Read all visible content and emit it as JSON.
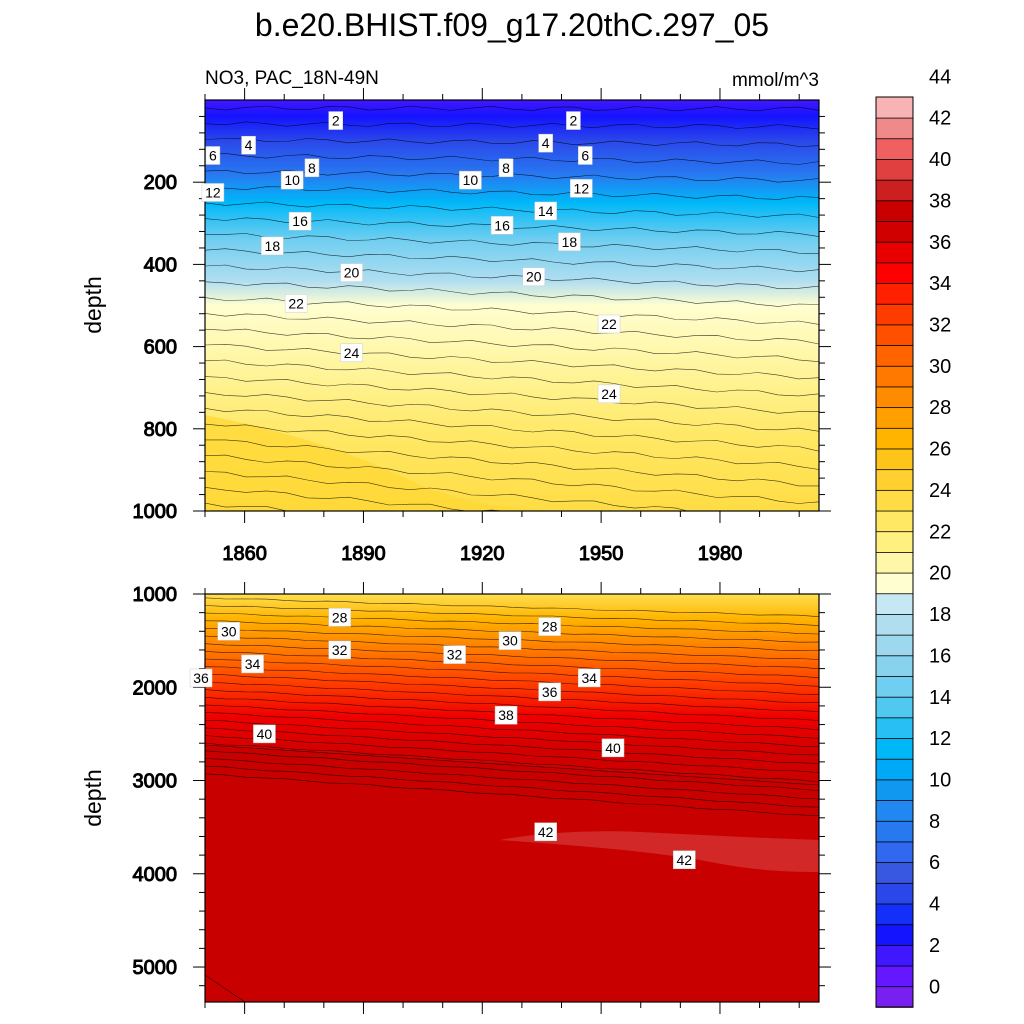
{
  "title": "b.e20.BHIST.f09_g17.20thC.297_05",
  "chart_data": [
    {
      "type": "contour",
      "panel": "upper",
      "left_label": "NO3, PAC_18N-49N",
      "right_label": "mmol/m^3",
      "xlabel": "",
      "ylabel": "depth",
      "xlim": [
        1850,
        2005
      ],
      "ylim": [
        1000,
        0
      ],
      "x_ticks": [
        1860,
        1890,
        1920,
        1950,
        1980
      ],
      "y_ticks": [
        200,
        400,
        600,
        800,
        1000
      ],
      "contour_labels": [
        {
          "value": "2",
          "x": 1883,
          "y": 50
        },
        {
          "value": "2",
          "x": 1943,
          "y": 50
        },
        {
          "value": "4",
          "x": 1861,
          "y": 110
        },
        {
          "value": "4",
          "x": 1936,
          "y": 105
        },
        {
          "value": "6",
          "x": 1852,
          "y": 135
        },
        {
          "value": "6",
          "x": 1946,
          "y": 135
        },
        {
          "value": "8",
          "x": 1877,
          "y": 165
        },
        {
          "value": "8",
          "x": 1926,
          "y": 165
        },
        {
          "value": "10",
          "x": 1872,
          "y": 195
        },
        {
          "value": "10",
          "x": 1917,
          "y": 195
        },
        {
          "value": "12",
          "x": 1852,
          "y": 225
        },
        {
          "value": "12",
          "x": 1945,
          "y": 215
        },
        {
          "value": "14",
          "x": 1936,
          "y": 270
        },
        {
          "value": "16",
          "x": 1874,
          "y": 295
        },
        {
          "value": "16",
          "x": 1925,
          "y": 305
        },
        {
          "value": "18",
          "x": 1867,
          "y": 355
        },
        {
          "value": "18",
          "x": 1942,
          "y": 345
        },
        {
          "value": "20",
          "x": 1887,
          "y": 420
        },
        {
          "value": "20",
          "x": 1933,
          "y": 430
        },
        {
          "value": "22",
          "x": 1873,
          "y": 495
        },
        {
          "value": "22",
          "x": 1952,
          "y": 545
        },
        {
          "value": "24",
          "x": 1887,
          "y": 615
        },
        {
          "value": "24",
          "x": 1952,
          "y": 715
        }
      ]
    },
    {
      "type": "contour",
      "panel": "lower",
      "xlabel": "",
      "ylabel": "depth",
      "xlim": [
        1850,
        2005
      ],
      "ylim": [
        5375,
        1000
      ],
      "y_ticks": [
        1000,
        2000,
        3000,
        4000,
        5000
      ],
      "contour_labels": [
        {
          "value": "28",
          "x": 1884,
          "y": 1250
        },
        {
          "value": "28",
          "x": 1937,
          "y": 1350
        },
        {
          "value": "30",
          "x": 1856,
          "y": 1400
        },
        {
          "value": "30",
          "x": 1927,
          "y": 1500
        },
        {
          "value": "32",
          "x": 1884,
          "y": 1600
        },
        {
          "value": "32",
          "x": 1913,
          "y": 1650
        },
        {
          "value": "34",
          "x": 1862,
          "y": 1750
        },
        {
          "value": "34",
          "x": 1947,
          "y": 1900
        },
        {
          "value": "36",
          "x": 1849,
          "y": 1900
        },
        {
          "value": "36",
          "x": 1937,
          "y": 2050
        },
        {
          "value": "38",
          "x": 1926,
          "y": 2300
        },
        {
          "value": "40",
          "x": 1865,
          "y": 2500
        },
        {
          "value": "40",
          "x": 1953,
          "y": 2650
        },
        {
          "value": "42",
          "x": 1936,
          "y": 3550
        },
        {
          "value": "42",
          "x": 1971,
          "y": 3850
        }
      ]
    }
  ],
  "colorbar": {
    "labels": [
      "0",
      "2",
      "4",
      "6",
      "8",
      "10",
      "12",
      "14",
      "16",
      "18",
      "20",
      "22",
      "24",
      "26",
      "28",
      "30",
      "32",
      "34",
      "36",
      "38",
      "40",
      "42",
      "44"
    ],
    "colors": [
      "#7820f0",
      "#6418ff",
      "#3f18ff",
      "#1414ff",
      "#1430f8",
      "#2a48ea",
      "#3858e2",
      "#3068f0",
      "#2878f0",
      "#2088f0",
      "#1098f0",
      "#00a8f8",
      "#00b8f8",
      "#28c0f4",
      "#50c8f0",
      "#70cef0",
      "#88d2ee",
      "#9ed8ee",
      "#b0def0",
      "#c6e8f4",
      "#fffed0",
      "#fff7a8",
      "#fff180",
      "#ffe864",
      "#ffdc44",
      "#ffd030",
      "#ffc418",
      "#ffb400",
      "#ffa000",
      "#ff8c00",
      "#ff7800",
      "#ff6400",
      "#ff5000",
      "#ff3c00",
      "#ff2000",
      "#ff0000",
      "#e80000",
      "#d00000",
      "#c80000",
      "#cc2020",
      "#e04040",
      "#f06060",
      "#f08a8a",
      "#f8b4b4"
    ]
  }
}
